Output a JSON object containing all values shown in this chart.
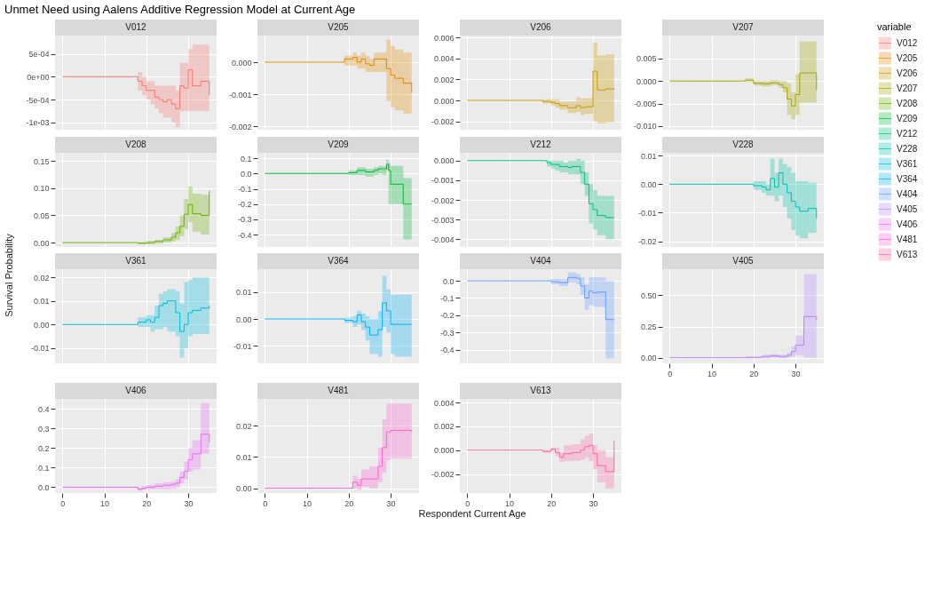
{
  "chart_data": [
    {
      "type": "step",
      "title": "Unmet Need using Aalens Additive Regression Model at Current Age",
      "legend": "right",
      "legend_title": "variable",
      "grid": true,
      "tick_labels": "y",
      "xlim": [
        -1.75,
        36.75
      ],
      "xticks": [
        0,
        10,
        20,
        30
      ],
      "ylim": [
        -0.00116,
        0.0009
      ],
      "yticks": [
        {
          "value": 0.0005,
          "label": "5e-04"
        },
        {
          "value": 0,
          "label": "0e+00"
        },
        {
          "value": -0.0005,
          "label": "-5e-04"
        },
        {
          "value": -0.001,
          "label": "-1e-03"
        }
      ],
      "series": [
        {
          "name": "V012",
          "color": "#f8766d",
          "x": [
            0,
            18,
            19,
            20,
            21,
            22,
            23,
            24,
            25,
            26,
            27,
            28,
            29,
            30,
            31,
            33,
            35
          ],
          "values": [
            0,
            -0.0001,
            -0.0002,
            -0.0003,
            -0.0003,
            -0.00045,
            -0.0005,
            -0.00055,
            -0.0005,
            -0.0006,
            -0.0007,
            -0.0002,
            -0.00025,
            0.00015,
            -0.0002,
            -0.0001,
            -0.0004
          ],
          "lower": [
            0,
            -0.0003,
            -0.0004,
            -0.0005,
            -0.0006,
            -0.0007,
            -0.0008,
            -0.0009,
            -0.0009,
            -0.001,
            -0.0011,
            -0.00075,
            -0.00075,
            -0.00075,
            -0.00075,
            -0.00075,
            -0.00075
          ],
          "upper": [
            0,
            0.0001,
            0,
            -0.0001,
            -0.0001,
            -0.0002,
            -0.0002,
            -0.0002,
            -0.0002,
            -0.0002,
            -0.0003,
            0.0003,
            0.0003,
            0.0006,
            0.0007,
            0.0007,
            0.0007
          ]
        }
      ]
    },
    {
      "type": "step",
      "grid": true,
      "tick_labels": "y",
      "xlim": [
        -1.75,
        36.75
      ],
      "xticks": [
        0,
        10,
        20,
        30
      ],
      "ylim": [
        -0.0021,
        0.00083
      ],
      "yticks": [
        {
          "value": 0,
          "label": "0.000"
        },
        {
          "value": -0.001,
          "label": "-0.001"
        },
        {
          "value": -0.002,
          "label": "-0.002"
        }
      ],
      "series": [
        {
          "name": "V205",
          "color": "#e58700",
          "x": [
            0,
            19,
            21,
            22,
            23,
            24,
            25,
            26,
            28,
            29,
            30,
            31,
            33,
            35
          ],
          "values": [
            0,
            0.0001,
            0.00015,
            0,
            0.0001,
            -5e-05,
            -0.0001,
            0.0001,
            0.0001,
            -0.0002,
            -0.0004,
            -0.0005,
            -0.00065,
            -0.00095
          ],
          "lower": [
            0,
            -0.0001,
            -0.0001,
            -0.0002,
            -0.0002,
            -0.0003,
            -0.0003,
            -0.0003,
            -0.0003,
            -0.0012,
            -0.0014,
            -0.0015,
            -0.0016,
            -0.0016
          ],
          "upper": [
            0,
            0.0002,
            0.0003,
            0.0002,
            0.0003,
            0.0002,
            0.0001,
            0.0003,
            0.0003,
            0.0007,
            0.0005,
            0.0004,
            0.0003,
            0.0003
          ]
        }
      ]
    },
    {
      "type": "step",
      "grid": true,
      "tick_labels": "y",
      "xlim": [
        -1.75,
        36.75
      ],
      "xticks": [
        0,
        10,
        20,
        30
      ],
      "ylim": [
        -0.0028,
        0.0062
      ],
      "yticks": [
        {
          "value": 0.006,
          "label": "0.006"
        },
        {
          "value": 0.004,
          "label": "0.004"
        },
        {
          "value": 0.002,
          "label": "0.002"
        },
        {
          "value": 0,
          "label": "0.000"
        },
        {
          "value": -0.002,
          "label": "-0.002"
        }
      ],
      "series": [
        {
          "name": "V206",
          "color": "#c99800",
          "x": [
            0,
            18,
            20,
            21,
            22,
            24,
            26,
            27,
            28,
            30,
            31,
            33,
            35
          ],
          "values": [
            0,
            -0.0001,
            -0.0002,
            -0.0003,
            -0.0005,
            -0.0007,
            -0.0005,
            -0.0007,
            -0.0006,
            0.0028,
            0.001,
            0.0011,
            0.001
          ],
          "lower": [
            0,
            -0.0003,
            -0.0005,
            -0.0007,
            -0.0009,
            -0.0012,
            -0.0011,
            -0.0014,
            -0.0013,
            -0.002,
            -0.0022,
            -0.0021,
            -0.0021
          ],
          "upper": [
            0,
            0.0001,
            0.0001,
            0.0001,
            -0.0001,
            -0.0001,
            0.0003,
            0.0002,
            0.0002,
            0.0055,
            0.0043,
            0.0044,
            0.0044
          ]
        }
      ]
    },
    {
      "type": "step",
      "grid": true,
      "tick_labels": "y",
      "xlim": [
        -1.75,
        36.75
      ],
      "xticks": [
        0,
        10,
        20,
        30
      ],
      "ylim": [
        -0.0108,
        0.0101
      ],
      "yticks": [
        {
          "value": 0.005,
          "label": "0.005"
        },
        {
          "value": 0,
          "label": "0.000"
        },
        {
          "value": -0.005,
          "label": "-0.005"
        },
        {
          "value": -0.01,
          "label": "-0.010"
        }
      ],
      "series": [
        {
          "name": "V207",
          "color": "#a3a500",
          "x": [
            0,
            18,
            20,
            22,
            24,
            26,
            27,
            28,
            29,
            30,
            31,
            35
          ],
          "values": [
            0,
            0.0002,
            -0.0005,
            -0.0006,
            -0.0004,
            -0.0008,
            -0.0015,
            -0.004,
            -0.0055,
            -0.003,
            0.0018,
            -0.002
          ],
          "lower": [
            0,
            -0.0002,
            -0.001,
            -0.0012,
            -0.001,
            -0.0015,
            -0.0025,
            -0.0075,
            -0.0085,
            -0.0075,
            -0.0048,
            -0.0048
          ],
          "upper": [
            0,
            0.0006,
            0,
            0,
            0.0002,
            0,
            0,
            -0.0005,
            -0.0025,
            0.0015,
            0.0088,
            0.0088
          ]
        }
      ]
    },
    {
      "type": "step",
      "grid": true,
      "tick_labels": "y",
      "xlim": [
        -1.75,
        36.75
      ],
      "xticks": [
        0,
        10,
        20,
        30
      ],
      "ylim": [
        -0.008,
        0.165
      ],
      "yticks": [
        {
          "value": 0.15,
          "label": "0.15"
        },
        {
          "value": 0.1,
          "label": "0.10"
        },
        {
          "value": 0.05,
          "label": "0.05"
        },
        {
          "value": 0,
          "label": "0.00"
        }
      ],
      "series": [
        {
          "name": "V208",
          "color": "#6bb100",
          "x": [
            0,
            18,
            20,
            22,
            24,
            25,
            26,
            27,
            28,
            29,
            30,
            31,
            33,
            35
          ],
          "values": [
            0,
            -0.001,
            0,
            0.002,
            0.005,
            0.005,
            0.01,
            0.018,
            0.03,
            0.052,
            0.07,
            0.053,
            0.05,
            0.095
          ],
          "lower": [
            0,
            -0.003,
            -0.003,
            -0.002,
            0,
            0,
            0.002,
            0.005,
            0.012,
            0.025,
            0.038,
            0.02,
            0.015,
            0.015
          ],
          "upper": [
            0,
            0.001,
            0.003,
            0.005,
            0.01,
            0.01,
            0.018,
            0.03,
            0.05,
            0.08,
            0.103,
            0.09,
            0.088,
            0.088
          ]
        }
      ]
    },
    {
      "type": "step",
      "grid": true,
      "tick_labels": "y",
      "xlim": [
        -1.75,
        36.75
      ],
      "xticks": [
        0,
        10,
        20,
        30
      ],
      "ylim": [
        -0.48,
        0.135
      ],
      "yticks": [
        {
          "value": 0.1,
          "label": "0.1"
        },
        {
          "value": 0,
          "label": "0.0"
        },
        {
          "value": -0.1,
          "label": "-0.1"
        },
        {
          "value": -0.2,
          "label": "-0.2"
        },
        {
          "value": -0.3,
          "label": "-0.3"
        },
        {
          "value": -0.4,
          "label": "-0.4"
        }
      ],
      "series": [
        {
          "name": "V209",
          "color": "#00ba38",
          "x": [
            0,
            20,
            22,
            24,
            26,
            27,
            28,
            29,
            29.5,
            30,
            31,
            33,
            35
          ],
          "values": [
            0,
            0.005,
            0.02,
            0.01,
            0.02,
            0.03,
            0.03,
            0.06,
            0.02,
            -0.07,
            -0.07,
            -0.2,
            -0.2
          ],
          "lower": [
            0,
            -0.01,
            -0.01,
            -0.02,
            -0.01,
            0,
            -0.01,
            0.02,
            -0.2,
            -0.2,
            -0.2,
            -0.43,
            -0.43
          ],
          "upper": [
            0,
            0.02,
            0.04,
            0.03,
            0.04,
            0.05,
            0.05,
            0.09,
            0.07,
            0.05,
            0.05,
            -0.03,
            -0.03
          ]
        }
      ]
    },
    {
      "type": "step",
      "grid": true,
      "tick_labels": "y",
      "xlim": [
        -1.75,
        36.75
      ],
      "xticks": [
        0,
        10,
        20,
        30
      ],
      "ylim": [
        -0.0044,
        0.0004
      ],
      "yticks": [
        {
          "value": 0,
          "label": "0.000"
        },
        {
          "value": -0.001,
          "label": "-0.001"
        },
        {
          "value": -0.002,
          "label": "-0.002"
        },
        {
          "value": -0.003,
          "label": "-0.003"
        },
        {
          "value": -0.004,
          "label": "-0.004"
        }
      ],
      "series": [
        {
          "name": "V212",
          "color": "#00bf7d",
          "x": [
            0,
            19,
            20,
            21,
            22,
            23,
            24,
            25,
            26,
            27,
            28,
            29,
            30,
            31,
            33,
            35
          ],
          "values": [
            0,
            -0.0001,
            -0.0002,
            -0.0002,
            -0.0003,
            -0.0003,
            -0.00035,
            -0.0003,
            -0.0003,
            -0.0006,
            -0.0012,
            -0.0022,
            -0.0025,
            -0.0028,
            -0.0029,
            -0.0029
          ],
          "lower": [
            0,
            -0.0003,
            -0.0004,
            -0.0005,
            -0.0006,
            -0.0006,
            -0.0007,
            -0.0007,
            -0.0007,
            -0.0012,
            -0.0018,
            -0.0032,
            -0.0035,
            -0.0038,
            -0.004,
            -0.004
          ],
          "upper": [
            0,
            0,
            0,
            0,
            0,
            -0.0001,
            0,
            0,
            0.0001,
            0,
            -0.0006,
            -0.0012,
            -0.0015,
            -0.0018,
            -0.0018,
            -0.0018
          ]
        }
      ]
    },
    {
      "type": "step",
      "grid": true,
      "tick_labels": "y",
      "xlim": [
        -1.75,
        36.75
      ],
      "xticks": [
        0,
        10,
        20,
        30
      ],
      "ylim": [
        -0.022,
        0.011
      ],
      "yticks": [
        {
          "value": 0.01,
          "label": "0.01"
        },
        {
          "value": 0,
          "label": "0.00"
        },
        {
          "value": -0.01,
          "label": "-0.01"
        },
        {
          "value": -0.02,
          "label": "-0.02"
        }
      ],
      "series": [
        {
          "name": "V228",
          "color": "#00c0af",
          "x": [
            0,
            20,
            22,
            23,
            24,
            25,
            26,
            27,
            28,
            29,
            30,
            31,
            33,
            35
          ],
          "values": [
            0,
            -0.0005,
            -0.001,
            -0.002,
            0.002,
            -0.001,
            0.004,
            0,
            -0.003,
            -0.006,
            -0.008,
            -0.0095,
            -0.0085,
            -0.012
          ],
          "lower": [
            0,
            -0.002,
            -0.003,
            -0.004,
            -0.004,
            -0.006,
            -0.004,
            -0.008,
            -0.012,
            -0.016,
            -0.018,
            -0.019,
            -0.017,
            -0.017
          ],
          "upper": [
            0,
            0.001,
            0.001,
            0,
            0.009,
            0.004,
            0.009,
            0.007,
            0.006,
            0.004,
            0.001,
            0.001,
            0.0005,
            0.0005
          ]
        }
      ]
    },
    {
      "type": "step",
      "ylabel": "Survival Probability",
      "grid": true,
      "tick_labels": "y",
      "xlim": [
        -1.75,
        36.75
      ],
      "xticks": [
        0,
        10,
        20,
        30
      ],
      "ylim": [
        -0.0165,
        0.0235
      ],
      "yticks": [
        {
          "value": 0.02,
          "label": "0.02"
        },
        {
          "value": 0.01,
          "label": "0.01"
        },
        {
          "value": 0,
          "label": "0.00"
        },
        {
          "value": -0.01,
          "label": "-0.01"
        }
      ],
      "series": [
        {
          "name": "V361",
          "color": "#00bcd8",
          "x": [
            0,
            18,
            20,
            21,
            22,
            23,
            24,
            25,
            27,
            28,
            29,
            30,
            31,
            33,
            35
          ],
          "values": [
            0,
            0.001,
            0.002,
            0.001,
            0.003,
            0.008,
            0.009,
            0.01,
            0.005,
            -0.003,
            0,
            0.005,
            0.006,
            0.007,
            0.008
          ],
          "lower": [
            0,
            -0.001,
            -0.001,
            -0.003,
            -0.002,
            -0.002,
            -0.001,
            -0.003,
            -0.005,
            -0.014,
            -0.01,
            -0.005,
            -0.004,
            -0.004,
            -0.004
          ],
          "upper": [
            0,
            0.003,
            0.004,
            0.004,
            0.008,
            0.013,
            0.014,
            0.015,
            0.014,
            0.009,
            0.018,
            0.019,
            0.02,
            0.02,
            0.02
          ]
        }
      ]
    },
    {
      "type": "step",
      "grid": true,
      "tick_labels": "y",
      "xlim": [
        -1.75,
        36.75
      ],
      "xticks": [
        0,
        10,
        20,
        30
      ],
      "ylim": [
        -0.0165,
        0.0185
      ],
      "yticks": [
        {
          "value": 0.01,
          "label": "0.01"
        },
        {
          "value": 0,
          "label": "0.00"
        },
        {
          "value": -0.01,
          "label": "-0.01"
        }
      ],
      "series": [
        {
          "name": "V364",
          "color": "#00b0f6",
          "x": [
            0,
            19,
            21,
            22,
            23,
            24,
            25,
            27,
            28,
            29,
            30,
            31,
            33,
            35
          ],
          "values": [
            0,
            -0.0005,
            -0.001,
            0.0015,
            -0.001,
            -0.003,
            -0.006,
            -0.004,
            0.006,
            0.003,
            -0.002,
            -0.002,
            -0.002,
            -0.002
          ],
          "lower": [
            0,
            -0.0015,
            -0.003,
            -0.002,
            -0.004,
            -0.008,
            -0.013,
            -0.014,
            -0.003,
            -0.005,
            -0.013,
            -0.014,
            -0.014,
            -0.014
          ],
          "upper": [
            0,
            0.0005,
            0.001,
            0.003,
            0.002,
            0.001,
            0,
            0.003,
            0.016,
            0.011,
            0.009,
            0.009,
            0.009,
            0.009
          ]
        }
      ]
    },
    {
      "type": "step",
      "grid": true,
      "tick_labels": "y",
      "xlim": [
        -1.75,
        36.75
      ],
      "xticks": [
        0,
        10,
        20,
        30
      ],
      "ylim": [
        -0.48,
        0.068
      ],
      "yticks": [
        {
          "value": 0,
          "label": "0.0"
        },
        {
          "value": -0.1,
          "label": "-0.1"
        },
        {
          "value": -0.2,
          "label": "-0.2"
        },
        {
          "value": -0.3,
          "label": "-0.3"
        },
        {
          "value": -0.4,
          "label": "-0.4"
        }
      ],
      "series": [
        {
          "name": "V404",
          "color": "#619cff",
          "x": [
            0,
            20,
            22,
            24,
            25,
            26,
            27,
            28,
            29,
            30,
            31,
            33,
            35
          ],
          "values": [
            0,
            -0.005,
            -0.01,
            0.02,
            0.02,
            0.015,
            -0.03,
            -0.1,
            -0.06,
            -0.07,
            -0.065,
            -0.225,
            -0.225
          ],
          "lower": [
            0,
            -0.02,
            -0.03,
            -0.01,
            -0.01,
            -0.02,
            -0.08,
            -0.17,
            -0.14,
            -0.15,
            -0.15,
            -0.45,
            -0.45
          ],
          "upper": [
            0,
            0.01,
            0.01,
            0.05,
            0.05,
            0.04,
            0.02,
            -0.02,
            0.02,
            0.02,
            0.02,
            0,
            0
          ]
        }
      ]
    },
    {
      "type": "step",
      "grid": true,
      "xlim": [
        -1.75,
        36.75
      ],
      "xticks": [
        0,
        10,
        20,
        30
      ],
      "ylim": [
        -0.045,
        0.71
      ],
      "yticks": [
        {
          "value": 0.5,
          "label": "0.50"
        },
        {
          "value": 0.25,
          "label": "0.25"
        },
        {
          "value": 0,
          "label": "0.00"
        }
      ],
      "series": [
        {
          "name": "V405",
          "color": "#b983ff",
          "x": [
            0,
            18,
            22,
            24,
            26,
            28,
            29,
            30,
            31,
            32,
            33,
            35
          ],
          "values": [
            0,
            0.002,
            0.01,
            0.015,
            0.01,
            0.02,
            0.05,
            0.1,
            0.1,
            0.33,
            0.33,
            0.3
          ],
          "lower": [
            0,
            -0.005,
            -0.005,
            0,
            -0.005,
            0,
            0.01,
            0.02,
            0.02,
            0,
            0,
            0
          ],
          "upper": [
            0,
            0.01,
            0.025,
            0.03,
            0.025,
            0.04,
            0.09,
            0.18,
            0.18,
            0.67,
            0.67,
            0.67
          ]
        }
      ]
    },
    {
      "type": "step",
      "grid": true,
      "xlim": [
        -1.75,
        36.75
      ],
      "xticks": [
        0,
        10,
        20,
        30
      ],
      "ylim": [
        -0.03,
        0.45
      ],
      "yticks": [
        {
          "value": 0.4,
          "label": "0.4"
        },
        {
          "value": 0.3,
          "label": "0.3"
        },
        {
          "value": 0.2,
          "label": "0.2"
        },
        {
          "value": 0.1,
          "label": "0.1"
        },
        {
          "value": 0,
          "label": "0.0"
        }
      ],
      "series": [
        {
          "name": "V406",
          "color": "#e76bf3",
          "x": [
            0,
            18,
            19,
            20,
            22,
            24,
            26,
            27,
            28,
            29,
            30,
            31,
            33,
            35
          ],
          "values": [
            0,
            -0.01,
            -0.005,
            0,
            0.005,
            0.01,
            0.015,
            0.02,
            0.05,
            0.08,
            0.14,
            0.17,
            0.27,
            0.23
          ],
          "lower": [
            0,
            -0.02,
            -0.015,
            -0.01,
            -0.01,
            -0.01,
            -0.005,
            0,
            0.02,
            0.04,
            0.08,
            0.09,
            0.17,
            0.17
          ],
          "upper": [
            0,
            0,
            0.005,
            0.01,
            0.02,
            0.025,
            0.03,
            0.04,
            0.08,
            0.13,
            0.2,
            0.24,
            0.43,
            0.43
          ]
        }
      ]
    },
    {
      "type": "step",
      "xlabel": "Respondent Current Age",
      "grid": true,
      "xlim": [
        -1.75,
        36.75
      ],
      "xticks": [
        0,
        10,
        20,
        30
      ],
      "ylim": [
        -0.0015,
        0.0285
      ],
      "yticks": [
        {
          "value": 0.02,
          "label": "0.02"
        },
        {
          "value": 0.01,
          "label": "0.01"
        },
        {
          "value": 0,
          "label": "0.00"
        }
      ],
      "series": [
        {
          "name": "V481",
          "color": "#fd61d1",
          "x": [
            0,
            21,
            22,
            23,
            25,
            27,
            28,
            29,
            30,
            33,
            35
          ],
          "values": [
            0,
            0.002,
            0.001,
            0.003,
            0.003,
            0.007,
            0.013,
            0.018,
            0.0185,
            0.0185,
            0.018
          ],
          "lower": [
            0,
            0,
            -0.0005,
            0.0005,
            0,
            0.002,
            0.005,
            0.009,
            0.0095,
            0.0095,
            0.0095
          ],
          "upper": [
            0,
            0.004,
            0.003,
            0.006,
            0.007,
            0.013,
            0.022,
            0.027,
            0.027,
            0.027,
            0.027
          ]
        }
      ]
    },
    {
      "type": "step",
      "grid": true,
      "xlim": [
        -1.75,
        36.75
      ],
      "xticks": [
        0,
        10,
        20,
        30
      ],
      "ylim": [
        -0.0036,
        0.0043
      ],
      "yticks": [
        {
          "value": 0.004,
          "label": "0.004"
        },
        {
          "value": 0.002,
          "label": "0.002"
        },
        {
          "value": 0,
          "label": "0.000"
        },
        {
          "value": -0.002,
          "label": "-0.002"
        }
      ],
      "series": [
        {
          "name": "V613",
          "color": "#ff67a4",
          "x": [
            0,
            18,
            20,
            21,
            22,
            23,
            25,
            27,
            28,
            29,
            30,
            31,
            33,
            35
          ],
          "values": [
            0,
            -0.0001,
            0.0001,
            -0.0002,
            -0.0006,
            -0.0003,
            -0.0002,
            0,
            0.0003,
            0.0004,
            -0.0003,
            -0.0013,
            -0.0018,
            0.0008
          ],
          "lower": [
            0,
            -0.0002,
            -0.0001,
            -0.0005,
            -0.001,
            -0.0009,
            -0.0009,
            -0.0008,
            -0.0006,
            -0.0009,
            -0.0016,
            -0.0027,
            -0.0032,
            -0.0032
          ],
          "upper": [
            0,
            0,
            0.0002,
            0.0002,
            -0.0002,
            0.0004,
            0.0005,
            0.0009,
            0.0012,
            0.0014,
            0.0004,
            0,
            -0.0006,
            -0.0006
          ]
        }
      ]
    }
  ]
}
